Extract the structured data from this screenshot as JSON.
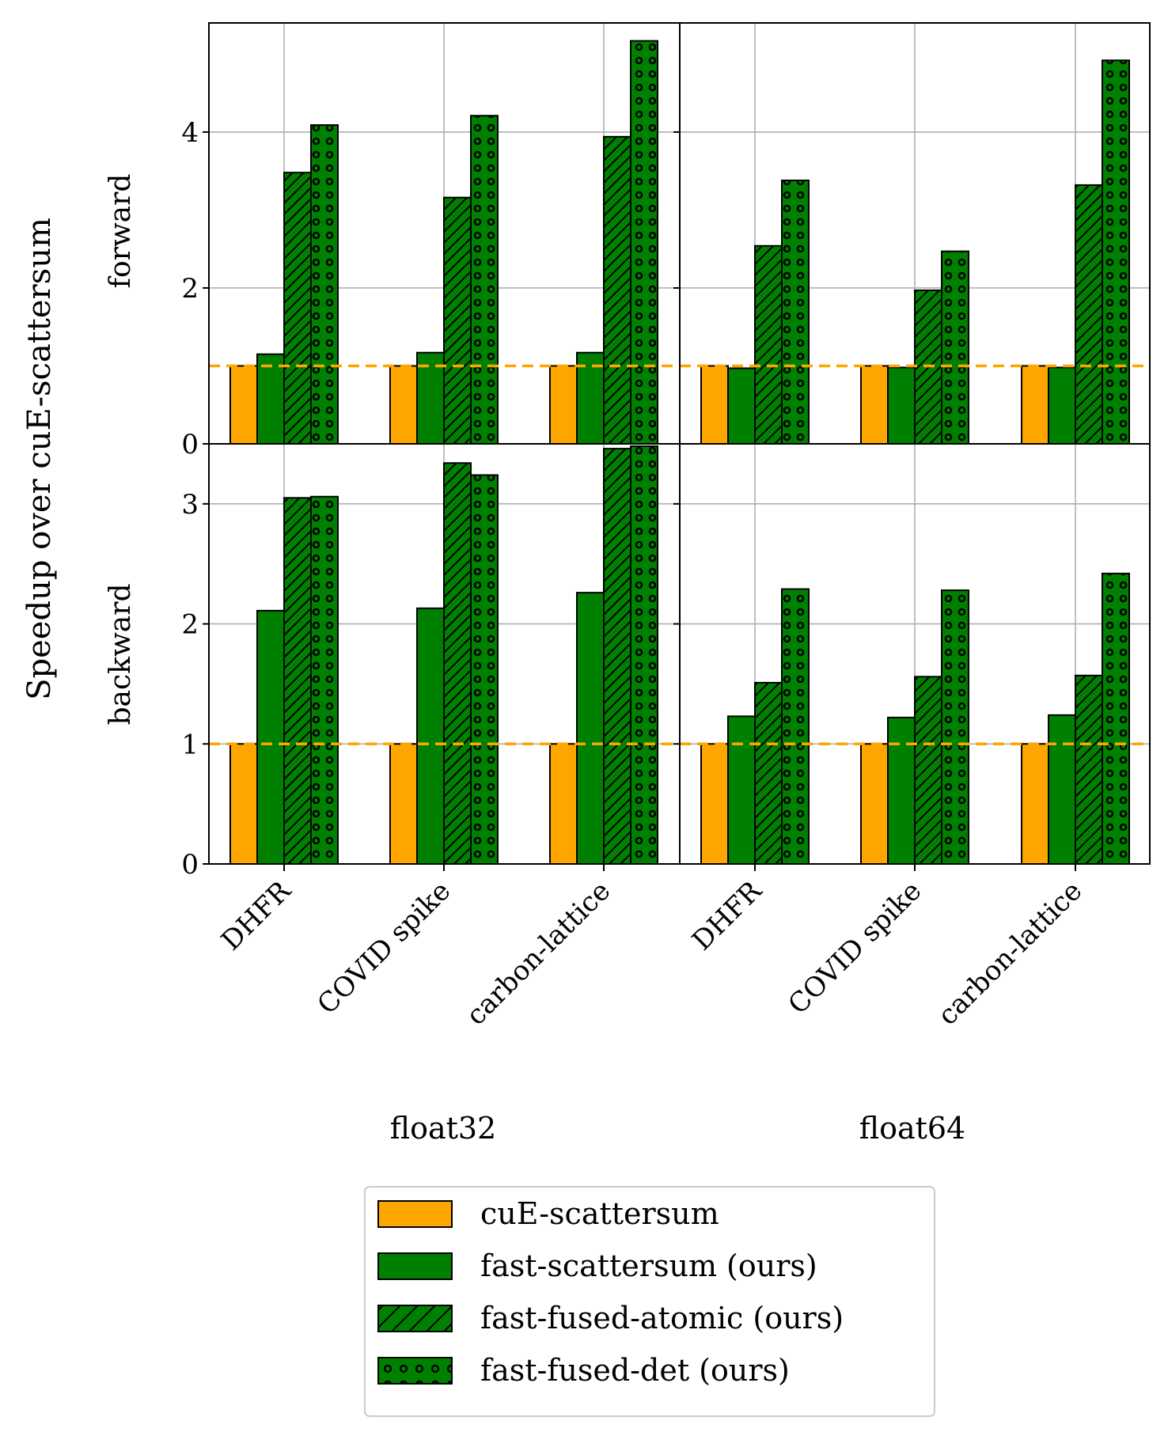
{
  "chart_data": {
    "type": "bar",
    "ylabel": "Speedup over cuE-scattersum",
    "column_labels": [
      "float32",
      "float64"
    ],
    "row_labels": [
      "forward",
      "backward"
    ],
    "categories": [
      "DHFR",
      "COVID spike",
      "carbon-lattice"
    ],
    "series": [
      {
        "name": "cuE-scattersum",
        "color": "#ffa500",
        "pattern": "solid"
      },
      {
        "name": "fast-scattersum (ours)",
        "color": "#008000",
        "pattern": "solid"
      },
      {
        "name": "fast-fused-atomic (ours)",
        "color": "#008000",
        "pattern": "hatch"
      },
      {
        "name": "fast-fused-det (ours)",
        "color": "#008000",
        "pattern": "dots"
      }
    ],
    "baseline": 1,
    "baseline_color": "#ffa500",
    "grid": true,
    "legend_position": "bottom-center",
    "panels": {
      "forward": {
        "ylim": [
          0,
          5.4
        ],
        "yticks": [
          0,
          2,
          4
        ],
        "float32": {
          "cuE-scattersum": [
            1.0,
            1.0,
            1.0
          ],
          "fast-scattersum (ours)": [
            1.15,
            1.17,
            1.17
          ],
          "fast-fused-atomic (ours)": [
            3.48,
            3.16,
            3.94
          ],
          "fast-fused-det (ours)": [
            4.09,
            4.21,
            5.17
          ]
        },
        "float64": {
          "cuE-scattersum": [
            1.0,
            1.0,
            1.0
          ],
          "fast-scattersum (ours)": [
            0.97,
            0.98,
            0.98
          ],
          "fast-fused-atomic (ours)": [
            2.54,
            1.97,
            3.32
          ],
          "fast-fused-det (ours)": [
            3.38,
            2.47,
            4.92
          ]
        }
      },
      "backward": {
        "ylim": [
          0,
          3.5
        ],
        "yticks": [
          0,
          1,
          2,
          3
        ],
        "float32": {
          "cuE-scattersum": [
            1.0,
            1.0,
            1.0
          ],
          "fast-scattersum (ours)": [
            2.11,
            2.13,
            2.26
          ],
          "fast-fused-atomic (ours)": [
            3.05,
            3.34,
            3.46
          ],
          "fast-fused-det (ours)": [
            3.06,
            3.24,
            3.48
          ]
        },
        "float64": {
          "cuE-scattersum": [
            1.0,
            1.0,
            1.0
          ],
          "fast-scattersum (ours)": [
            1.23,
            1.22,
            1.24
          ],
          "fast-fused-atomic (ours)": [
            1.51,
            1.56,
            1.57
          ],
          "fast-fused-det (ours)": [
            2.29,
            2.28,
            2.42
          ]
        }
      }
    }
  }
}
